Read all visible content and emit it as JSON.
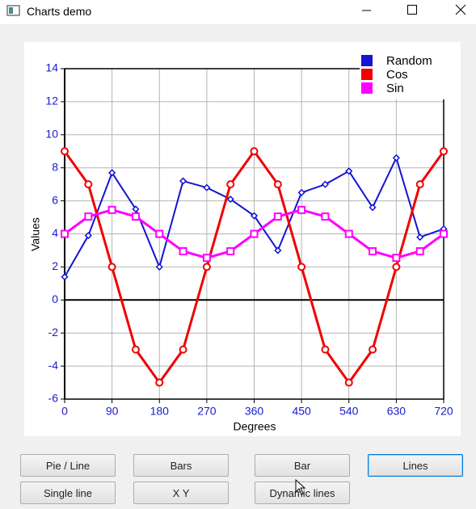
{
  "window": {
    "title": "Charts demo"
  },
  "chart_data": {
    "type": "line",
    "x_label": "Degrees",
    "y_label": "Values",
    "x": [
      0,
      45,
      90,
      135,
      180,
      225,
      270,
      315,
      360,
      405,
      450,
      495,
      540,
      585,
      630,
      675,
      720
    ],
    "series": [
      {
        "name": "Random",
        "color": "#1414d2",
        "marker": "diamond",
        "values": [
          1.4,
          3.9,
          7.7,
          5.5,
          2.0,
          7.2,
          6.8,
          6.1,
          5.1,
          3.0,
          6.5,
          7.0,
          7.8,
          5.6,
          8.6,
          3.8,
          4.3
        ]
      },
      {
        "name": "Cos",
        "color": "#f00000",
        "marker": "circle",
        "values": [
          9,
          7,
          2,
          -3,
          -5,
          -3,
          2,
          7,
          9,
          7,
          2,
          -3,
          -5,
          -3,
          2,
          7,
          9
        ]
      },
      {
        "name": "Sin",
        "color": "#ff00ff",
        "marker": "square",
        "values": [
          4,
          5.05,
          5.45,
          5.05,
          4,
          2.95,
          2.55,
          2.95,
          4,
          5.05,
          5.45,
          5.05,
          4,
          2.95,
          2.55,
          2.95,
          4
        ]
      }
    ],
    "xlim": [
      0,
      720
    ],
    "xticks": [
      0,
      90,
      180,
      270,
      360,
      450,
      540,
      630,
      720
    ],
    "ylim": [
      -6,
      14
    ],
    "yticks": [
      -6,
      -4,
      -2,
      0,
      2,
      4,
      6,
      8,
      10,
      12,
      14
    ],
    "grid": true,
    "legend": "top-right"
  },
  "buttons": [
    "Pie / Line",
    "Bars",
    "Bar",
    "Lines",
    "Single line",
    "X Y",
    "Dynamic lines"
  ]
}
